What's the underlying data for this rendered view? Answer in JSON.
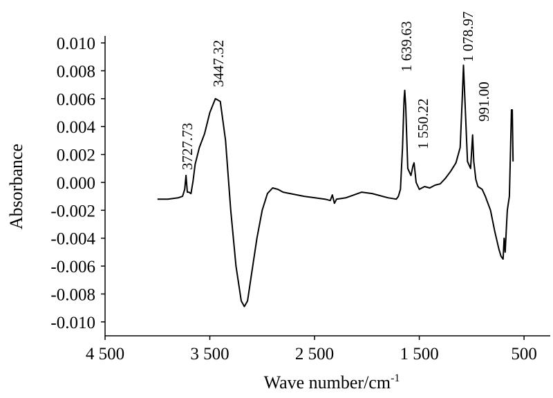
{
  "chart_data": {
    "type": "line",
    "y_label": "Absorbance",
    "x_label": "Wave number/cm",
    "x_label_sup": "-1",
    "xlim": [
      4500,
      250
    ],
    "ylim": [
      -0.011,
      0.0105
    ],
    "xticks": [
      {
        "value": 4500,
        "label": "4 500"
      },
      {
        "value": 3500,
        "label": "3 500"
      },
      {
        "value": 2500,
        "label": "2 500"
      },
      {
        "value": 1500,
        "label": "1 500"
      },
      500
    ],
    "yticks": [
      {
        "value": 0.01,
        "label": "0.010"
      },
      {
        "value": 0.008,
        "label": "0.008"
      },
      {
        "value": 0.006,
        "label": "0.006"
      },
      {
        "value": 0.004,
        "label": "0.004"
      },
      {
        "value": 0.002,
        "label": "0.002"
      },
      {
        "value": 0,
        "label": "0.000"
      },
      {
        "value": -0.002,
        "label": "-0.002"
      },
      {
        "value": -0.004,
        "label": "-0.004"
      },
      {
        "value": -0.006,
        "label": "-0.006"
      },
      {
        "value": -0.008,
        "label": "-0.008"
      },
      {
        "value": -0.01,
        "label": "-0.010"
      }
    ],
    "annotations": [
      "3727.73",
      "3447.32",
      "1 639.63",
      "1 550.22",
      "1 078.97",
      "991.00"
    ],
    "series": [
      {
        "color": "#000000",
        "x": [
          4000,
          3900,
          3800,
          3760,
          3740,
          3727,
          3715,
          3700,
          3680,
          3660,
          3640,
          3600,
          3550,
          3500,
          3447,
          3400,
          3350,
          3300,
          3250,
          3200,
          3170,
          3140,
          3100,
          3050,
          3000,
          2950,
          2900,
          2850,
          2800,
          2600,
          2400,
          2350,
          2330,
          2310,
          2290,
          2200,
          2050,
          1950,
          1800,
          1720,
          1700,
          1680,
          1660,
          1645,
          1639,
          1630,
          1610,
          1580,
          1560,
          1550,
          1530,
          1500,
          1450,
          1400,
          1350,
          1300,
          1250,
          1200,
          1150,
          1110,
          1090,
          1078,
          1065,
          1040,
          1010,
          991,
          980,
          960,
          940,
          900,
          870,
          820,
          780,
          740,
          720,
          700,
          690,
          680,
          660,
          640,
          630,
          620,
          612,
          605
        ],
        "values": [
          -0.0012,
          -0.0012,
          -0.0011,
          -0.001,
          -0.0005,
          0.0005,
          -0.0007,
          -0.0007,
          -0.0008,
          0.0001,
          0.0013,
          0.0025,
          0.0035,
          0.005,
          0.006,
          0.0058,
          0.003,
          -0.002,
          -0.006,
          -0.0085,
          -0.0089,
          -0.0085,
          -0.0065,
          -0.004,
          -0.002,
          -0.0008,
          -0.0004,
          -0.0005,
          -0.0007,
          -0.001,
          -0.0012,
          -0.0013,
          -0.0009,
          -0.0015,
          -0.0012,
          -0.0011,
          -0.0007,
          -0.0008,
          -0.0011,
          -0.0012,
          -0.001,
          -0.0005,
          0.0025,
          0.006,
          0.0066,
          0.0055,
          0.001,
          0.0005,
          0.0012,
          0.0014,
          0,
          -0.0005,
          -0.0003,
          -0.0004,
          -0.0002,
          -0.0001,
          0.0003,
          0.0008,
          0.0014,
          0.0025,
          0.006,
          0.0084,
          0.006,
          0.0015,
          0.001,
          0.0034,
          0.0015,
          0.0002,
          -0.0003,
          -0.0005,
          -0.001,
          -0.002,
          -0.0035,
          -0.0048,
          -0.0053,
          -0.0055,
          -0.004,
          -0.005,
          -0.002,
          -0.001,
          0.002,
          0.0052,
          0.0052,
          0.0015
        ]
      }
    ]
  }
}
